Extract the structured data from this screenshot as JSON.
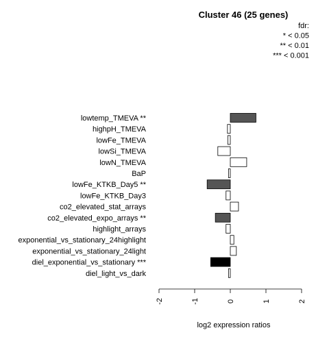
{
  "chart_data": {
    "type": "bar",
    "orientation": "horizontal",
    "title": "Cluster 46 (25 genes)",
    "xlabel": "log2 expression ratios",
    "ylabel": "",
    "xlim": [
      -2,
      2
    ],
    "xticks": [
      -2,
      -1,
      0,
      1,
      2
    ],
    "xtick_labels": [
      "-2",
      "-1",
      "0",
      "1",
      "2"
    ],
    "legend": {
      "placement": "top-right",
      "lines": [
        "fdr:",
        "* < 0.05",
        "** < 0.01",
        "*** < 0.001"
      ]
    },
    "grid": false,
    "categories": [
      "lowtemp_TMEVA **",
      "highpH_TMEVA",
      "lowFe_TMEVA",
      "lowSi_TMEVA",
      "lowN_TMEVA",
      "BaP",
      "lowFe_KTKB_Day5 **",
      "lowFe_KTKB_Day3",
      "co2_elevated_stat_arrays",
      "co2_elevated_expo_arrays **",
      "highlight_arrays",
      "exponential_vs_stationary_24highlight",
      "exponential_vs_stationary_24light",
      "diel_exponential_vs_stationary ***",
      "diel_light_vs_dark"
    ],
    "values": [
      0.72,
      -0.08,
      -0.07,
      -0.35,
      0.46,
      -0.05,
      -0.65,
      -0.12,
      0.23,
      -0.42,
      -0.12,
      0.1,
      0.17,
      -0.55,
      -0.05
    ],
    "significance": [
      "**",
      "",
      "",
      "",
      "",
      "",
      "**",
      "",
      "",
      "**",
      "",
      "",
      "",
      "***",
      ""
    ],
    "colors": {
      "none": "#ffffff",
      "*": "#bebebe",
      "**": "#555555",
      "***": "#000000",
      "stroke": "#000000"
    }
  }
}
